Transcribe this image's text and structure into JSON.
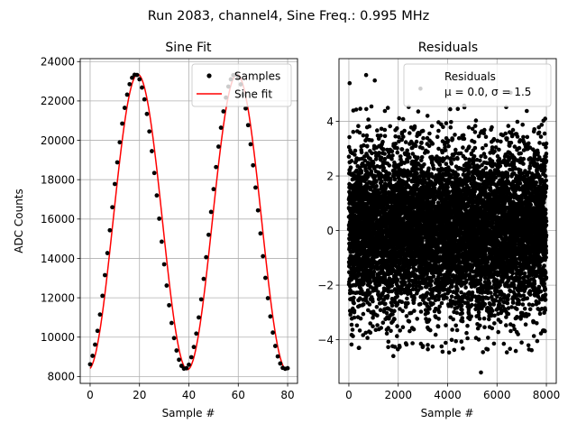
{
  "suptitle": "Run 2083, channel4, Sine Freq.: 0.995 MHz",
  "chart_data": [
    {
      "type": "line",
      "title": "Sine Fit",
      "xlabel": "Sample #",
      "ylabel": "ADC Counts",
      "xlim": [
        -4,
        84
      ],
      "ylim": [
        7650,
        24150
      ],
      "xticks": [
        0,
        20,
        40,
        60,
        80
      ],
      "yticks": [
        8000,
        10000,
        12000,
        14000,
        16000,
        18000,
        20000,
        22000,
        24000
      ],
      "grid": true,
      "legend": {
        "placement": "upper-right",
        "entries": [
          "Samples",
          "Sine fit"
        ]
      },
      "sine_model": {
        "offset": 15850,
        "amplitude": 7500,
        "period": 40.2,
        "phase_sample": 19.3
      },
      "series": [
        {
          "name": "Samples",
          "style": "scatter",
          "color": "#000000",
          "x": [
            0,
            1,
            2,
            3,
            4,
            5,
            6,
            7,
            8,
            9,
            10,
            11,
            12,
            13,
            14,
            15,
            16,
            17,
            18,
            19,
            20,
            21,
            22,
            23,
            24,
            25,
            26,
            27,
            28,
            29,
            30,
            31,
            32,
            33,
            34,
            35,
            36,
            37,
            38,
            39,
            40,
            41,
            42,
            43,
            44,
            45,
            46,
            47,
            48,
            49,
            50,
            51,
            52,
            53,
            54,
            55,
            56,
            57,
            58,
            59,
            60,
            61,
            62,
            63,
            64,
            65,
            66,
            67,
            68,
            69,
            70,
            71,
            72,
            73,
            74,
            75,
            76,
            77,
            78,
            79,
            80
          ],
          "y": [
            8620,
            9050,
            9620,
            10320,
            11150,
            12100,
            13150,
            14270,
            15430,
            16600,
            17780,
            18880,
            19900,
            20850,
            21650,
            22320,
            22850,
            23180,
            23330,
            23320,
            23100,
            22680,
            22080,
            21340,
            20450,
            19450,
            18340,
            17200,
            16020,
            14850,
            13700,
            12620,
            11620,
            10720,
            9950,
            9320,
            8850,
            8540,
            8400,
            8420,
            8600,
            8980,
            9500,
            10180,
            11000,
            11920,
            12960,
            14060,
            15200,
            16360,
            17520,
            18640,
            19680,
            20640,
            21470,
            22170,
            22730,
            23100,
            23310,
            23340,
            23180,
            22840,
            22310,
            21620,
            20770,
            19800,
            18730,
            17600,
            16440,
            15270,
            14110,
            13010,
            11980,
            11050,
            10230,
            9550,
            9020,
            8660,
            8440,
            8390,
            8420
          ]
        },
        {
          "name": "Sine fit",
          "style": "line",
          "color": "#ff0000"
        }
      ]
    },
    {
      "type": "scatter",
      "title": "Residuals",
      "xlabel": "Sample #",
      "ylabel": "",
      "xlim": [
        -400,
        8400
      ],
      "ylim": [
        -5.6,
        6.3
      ],
      "xticks": [
        0,
        2000,
        4000,
        6000,
        8000
      ],
      "yticks": [
        -4,
        -2,
        0,
        2,
        4
      ],
      "grid": true,
      "legend": {
        "placement": "upper-right",
        "entries": [
          "Residuals",
          "μ = 0.0, σ = 1.5"
        ]
      },
      "series": [
        {
          "name": "Residuals",
          "color": "#000000",
          "n_points": 8000,
          "mean": 0.0,
          "sigma": 1.5,
          "x_range": [
            0,
            8000
          ],
          "outliers": [
            {
              "x": 30,
              "y": 5.4
            },
            {
              "x": 700,
              "y": 5.7
            },
            {
              "x": 1050,
              "y": 5.5
            },
            {
              "x": 2900,
              "y": 5.2
            },
            {
              "x": 5350,
              "y": -5.2
            },
            {
              "x": 400,
              "y": -4.3
            },
            {
              "x": 1800,
              "y": -4.6
            },
            {
              "x": 6550,
              "y": 5.05
            },
            {
              "x": 7950,
              "y": 4.1
            }
          ]
        }
      ]
    }
  ]
}
